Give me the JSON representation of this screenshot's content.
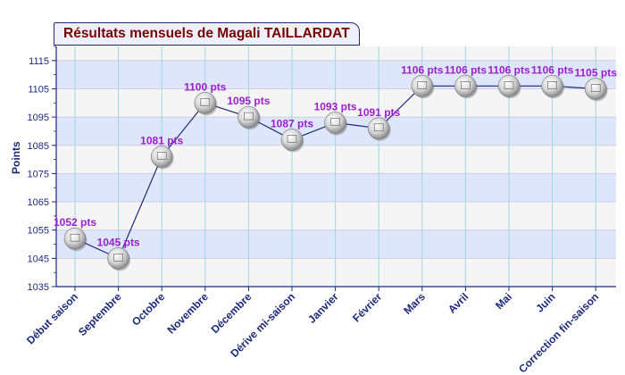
{
  "chart_data": {
    "type": "line",
    "title": "Résultats mensuels de Magali TAILLARDAT",
    "ylabel": "Points",
    "xlabel": "",
    "ylim": [
      1035,
      1120
    ],
    "yticks": [
      1035,
      1045,
      1055,
      1065,
      1075,
      1085,
      1095,
      1105,
      1115
    ],
    "grid": true,
    "legend": "none",
    "colors": {
      "line": "#1d2a7a",
      "label": "#9c1fd0",
      "band": "#dde6fb",
      "band_alt": "#f5f5f5",
      "tick_label": "#1d2a7a",
      "axis": "#1d2a7a",
      "vgrid": "#9fd8e3"
    },
    "categories": [
      "Début saison",
      "Septembre",
      "Octobre",
      "Novembre",
      "Décembre",
      "Dérive mi-saison",
      "Janvier",
      "Février",
      "Mars",
      "Avril",
      "Mai",
      "Juin",
      "Correction fin-saison"
    ],
    "values": [
      1052,
      1045,
      1081,
      1100,
      1095,
      1087,
      1093,
      1091,
      1106,
      1106,
      1106,
      1106,
      1105
    ],
    "data_labels": [
      "1052 pts",
      "1045 pts",
      "1081 pts",
      "1100 pts",
      "1095 pts",
      "1087 pts",
      "1093 pts",
      "1091 pts",
      "1106 pts",
      "1106 pts",
      "1106 pts",
      "1106 pts",
      "1105 pts"
    ]
  }
}
